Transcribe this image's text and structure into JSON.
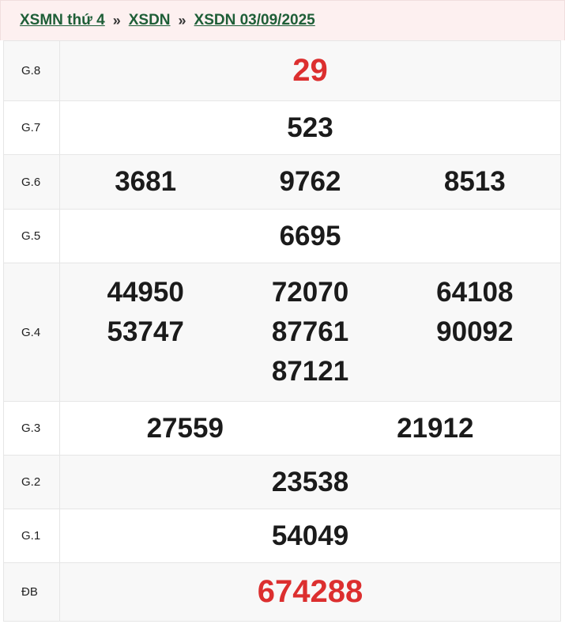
{
  "breadcrumb": {
    "items": [
      "XSMN thứ 4",
      "XSDN",
      "XSDN 03/09/2025"
    ],
    "separator": "»"
  },
  "colors": {
    "special": "#dc2f2f",
    "link": "#1e5e37"
  },
  "prizes": [
    {
      "label": "G.8",
      "numbers": [
        "29"
      ]
    },
    {
      "label": "G.7",
      "numbers": [
        "523"
      ]
    },
    {
      "label": "G.6",
      "numbers": [
        "3681",
        "9762",
        "8513"
      ]
    },
    {
      "label": "G.5",
      "numbers": [
        "6695"
      ]
    },
    {
      "label": "G.4",
      "numbers": [
        "44950",
        "72070",
        "64108",
        "53747",
        "87761",
        "90092",
        "87121"
      ]
    },
    {
      "label": "G.3",
      "numbers": [
        "27559",
        "21912"
      ]
    },
    {
      "label": "G.2",
      "numbers": [
        "23538"
      ]
    },
    {
      "label": "G.1",
      "numbers": [
        "54049"
      ]
    },
    {
      "label": "ĐB",
      "numbers": [
        "674288"
      ]
    }
  ]
}
